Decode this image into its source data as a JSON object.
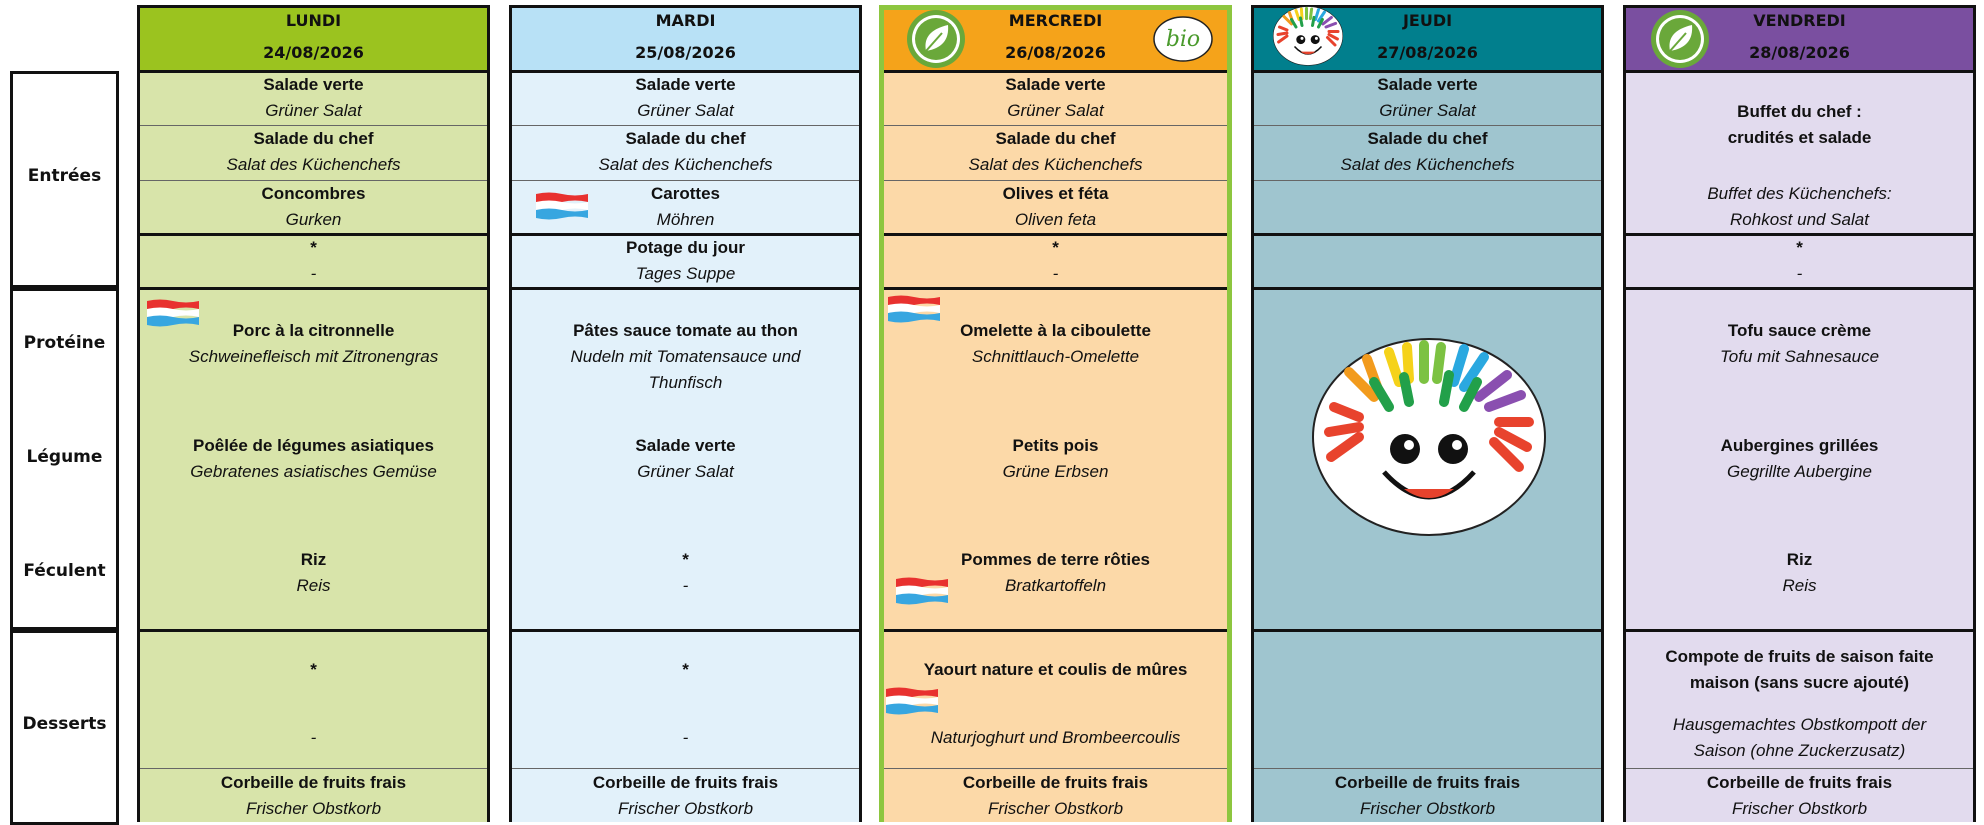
{
  "row_labels": [
    "Entrées",
    "Protéine",
    "Légume",
    "Féculent",
    "Desserts"
  ],
  "logo_text": "bio",
  "days": [
    {
      "name": "LUNDI",
      "date": "24/08/2026",
      "header_color": "#9bc31f",
      "body_color": "#d8e4aa",
      "entrees": [
        {
          "fr": "Salade verte",
          "de": "Grüner Salat"
        },
        {
          "fr": "Salade du chef",
          "de": "Salat des Küchenchefs"
        },
        {
          "fr": "Concombres",
          "de": "Gurken"
        },
        {
          "fr": "*",
          "de": "-"
        }
      ],
      "protein": {
        "fr": "Porc à la citronnelle",
        "de": "Schweinefleisch mit Zitronengras"
      },
      "vegetable": {
        "fr": "Poêlée de légumes asiatiques",
        "de": "Gebratenes asiatisches Gemüse"
      },
      "starch": {
        "fr": "Riz",
        "de": "Reis"
      },
      "dessert": {
        "fr": "*",
        "de": "-"
      },
      "fruit": {
        "fr": "Corbeille de fruits frais",
        "de": "Frischer Obstkorb"
      }
    },
    {
      "name": "MARDI",
      "date": "25/08/2026",
      "header_color": "#b8e1f6",
      "body_color": "#e2f1fa",
      "entrees": [
        {
          "fr": "Salade verte",
          "de": "Grüner Salat"
        },
        {
          "fr": "Salade du chef",
          "de": "Salat des Küchenchefs"
        },
        {
          "fr": "Carottes",
          "de": "Möhren"
        },
        {
          "fr": "Potage du jour",
          "de": "Tages Suppe"
        }
      ],
      "protein": {
        "fr": "Pâtes sauce tomate au thon",
        "de": "Nudeln mit Tomatensauce und\nThunfisch"
      },
      "vegetable": {
        "fr": "Salade verte",
        "de": "Grüner Salat"
      },
      "starch": {
        "fr": "*",
        "de": "-"
      },
      "dessert": {
        "fr": "*",
        "de": "-"
      },
      "fruit": {
        "fr": "Corbeille de fruits frais",
        "de": "Frischer Obstkorb"
      }
    },
    {
      "name": "MERCREDI",
      "date": "26/08/2026",
      "header_color": "#f5a31a",
      "body_color": "#fcd9a8",
      "entrees": [
        {
          "fr": "Salade verte",
          "de": "Grüner Salat"
        },
        {
          "fr": "Salade du chef",
          "de": "Salat des Küchenchefs"
        },
        {
          "fr": "Olives et féta",
          "de": "Oliven feta"
        },
        {
          "fr": "*",
          "de": "-"
        }
      ],
      "protein": {
        "fr": "Omelette à la ciboulette",
        "de": "Schnittlauch-Omelette"
      },
      "vegetable": {
        "fr": "Petits pois",
        "de": "Grüne Erbsen"
      },
      "starch": {
        "fr": "Pommes de terre rôties",
        "de": "Bratkartoffeln"
      },
      "dessert": {
        "fr": "Yaourt nature et coulis de mûres",
        "de": "Naturjoghurt und Brombeercoulis"
      },
      "fruit": {
        "fr": "Corbeille de fruits frais",
        "de": "Frischer Obstkorb"
      }
    },
    {
      "name": "JEUDI",
      "date": "27/08/2026",
      "header_color": "#017f8d",
      "body_color": "#9fc5cf",
      "entrees": [
        {
          "fr": "Salade verte",
          "de": "Grüner Salat"
        },
        {
          "fr": "Salade du chef",
          "de": "Salat des Küchenchefs"
        },
        null,
        null
      ],
      "protein": null,
      "vegetable": null,
      "starch": null,
      "dessert": null,
      "fruit": {
        "fr": "Corbeille de fruits frais",
        "de": "Frischer Obstkorb"
      }
    },
    {
      "name": "VENDREDI",
      "date": "28/08/2026",
      "header_color": "#7a4fa0",
      "body_color": "#e2dbee",
      "entrees": [
        {
          "fr": "Buffet du chef :\ncrudités et salade",
          "de": "Buffet des Küchenchefs:\nRohkost und Salat"
        },
        {
          "fr": "*",
          "de": "-"
        }
      ],
      "protein": {
        "fr": "Tofu sauce crème",
        "de": "Tofu mit Sahnesauce"
      },
      "vegetable": {
        "fr": "Aubergines grillées",
        "de": "Gegrillte Aubergine"
      },
      "starch": {
        "fr": "Riz",
        "de": "Reis"
      },
      "dessert": {
        "fr": "Compote de fruits de saison faite\nmaison (sans sucre ajouté)",
        "de": "Hausgemachtes Obstkompott der\nSaison (ohne Zuckerzusatz)"
      },
      "fruit": {
        "fr": "Corbeille de fruits frais",
        "de": "Frischer Obstkorb"
      }
    }
  ]
}
